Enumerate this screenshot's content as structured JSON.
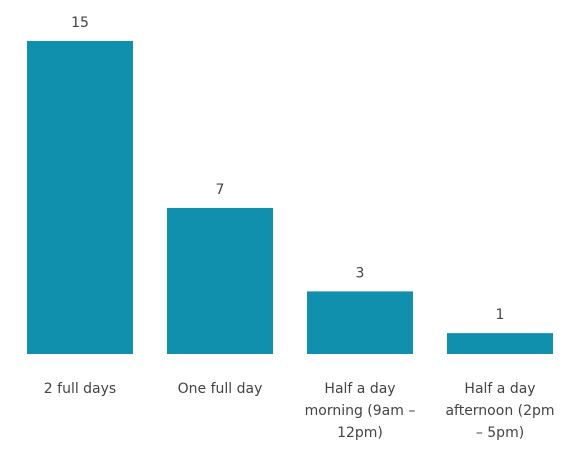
{
  "chart_data": {
    "type": "bar",
    "categories": [
      "2 full days",
      "One full day",
      "Half a day morning (9am – 12pm)",
      "Half a day afternoon (2pm – 5pm)"
    ],
    "values": [
      15,
      7,
      3,
      1
    ],
    "color": "#1190ad"
  }
}
